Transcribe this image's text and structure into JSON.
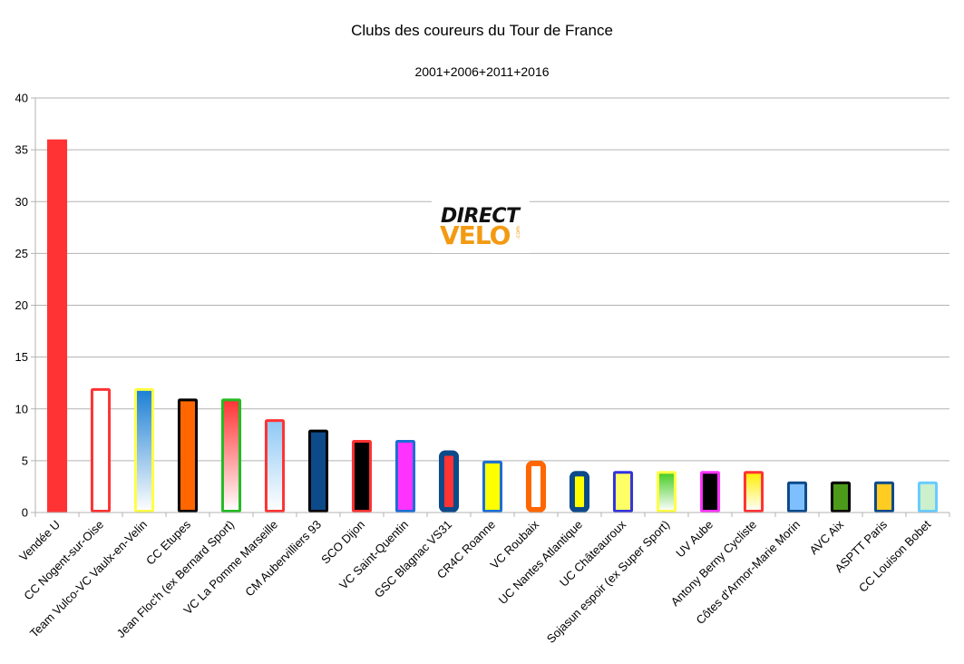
{
  "chart_data": {
    "type": "bar",
    "title": "Clubs des coureurs du Tour de France",
    "subtitle": "2001+2006+2011+2016",
    "xlabel": "",
    "ylabel": "",
    "ylim": [
      0,
      40
    ],
    "yticks": [
      0,
      5,
      10,
      15,
      20,
      25,
      30,
      35,
      40
    ],
    "grid": true,
    "categories": [
      "Vendée U",
      "CC Nogent-sur-Oise",
      "Team Vulco-VC Vaulx-en-Velin",
      "CC Etupes",
      "Jean Floc'h (ex Bernard Sport)",
      "VC La Pomme Marseille",
      "CM Aubervilliers 93",
      "SCO Dijon",
      "VC Saint-Quentin",
      "GSC Blagnac VS31",
      "CR4C Roanne",
      "VC Roubaix",
      "UC Nantes Atlantique",
      "UC Châteauroux",
      "Sojasun espoir (ex Super Sport)",
      "UV Aube",
      "Antony Berny Cycliste",
      "Côtes d'Armor-Marie Morin",
      "AVC Aix",
      "ASPTT Paris",
      "CC Louison Bobet"
    ],
    "values": [
      36,
      12,
      12,
      11,
      11,
      9,
      8,
      7,
      7,
      6,
      5,
      5,
      4,
      4,
      4,
      4,
      4,
      3,
      3,
      3,
      3
    ],
    "bar_styles": [
      {
        "fill": "#ff3333",
        "stroke": "#ff3333",
        "gradient": "",
        "thick": false
      },
      {
        "fill": "#ffffff",
        "stroke": "#ff3333",
        "gradient": "",
        "thick": false
      },
      {
        "fill": "#1b7fd4",
        "stroke": "#ffff44",
        "gradient": "#ffffff",
        "thick": false
      },
      {
        "fill": "#ff6600",
        "stroke": "#000000",
        "gradient": "",
        "thick": false
      },
      {
        "fill": "#ff3333",
        "stroke": "#22bb22",
        "gradient": "#ffffff",
        "thick": false
      },
      {
        "fill": "#8fc8f4",
        "stroke": "#ff3333",
        "gradient": "#ffffff",
        "thick": false
      },
      {
        "fill": "#0c4a8a",
        "stroke": "#000000",
        "gradient": "",
        "thick": false
      },
      {
        "fill": "#000000",
        "stroke": "#ff3333",
        "gradient": "",
        "thick": false
      },
      {
        "fill": "#ff33ff",
        "stroke": "#1b6fd4",
        "gradient": "",
        "thick": false
      },
      {
        "fill": "#ff3333",
        "stroke": "#0c4a8a",
        "gradient": "",
        "thick": true
      },
      {
        "fill": "#ffff00",
        "stroke": "#1b6fd4",
        "gradient": "",
        "thick": false
      },
      {
        "fill": "#ffffff",
        "stroke": "#ff6600",
        "gradient": "",
        "thick": true
      },
      {
        "fill": "#ffff00",
        "stroke": "#0c4a8a",
        "gradient": "",
        "thick": true
      },
      {
        "fill": "#ffff66",
        "stroke": "#3333dd",
        "gradient": "",
        "thick": false
      },
      {
        "fill": "#44cc22",
        "stroke": "#ffff44",
        "gradient": "#ffffff",
        "thick": false
      },
      {
        "fill": "#000000",
        "stroke": "#ff33ff",
        "gradient": "",
        "thick": false
      },
      {
        "fill": "#ffee00",
        "stroke": "#ff3333",
        "gradient": "#ffffff",
        "thick": false
      },
      {
        "fill": "#7fbfff",
        "stroke": "#0c4a8a",
        "gradient": "",
        "thick": false
      },
      {
        "fill": "#4c9a1a",
        "stroke": "#000000",
        "gradient": "",
        "thick": false
      },
      {
        "fill": "#ffcc22",
        "stroke": "#0c4a8a",
        "gradient": "",
        "thick": false
      },
      {
        "fill": "#ccf0cc",
        "stroke": "#66ccff",
        "gradient": "",
        "thick": false
      }
    ]
  },
  "logo": {
    "line1": "DIRECT",
    "line2": "VELO",
    "line3": ".com"
  }
}
